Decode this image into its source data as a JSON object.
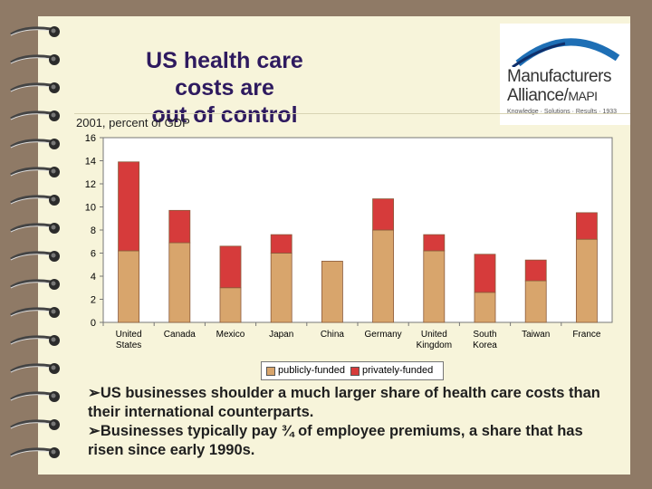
{
  "title": {
    "line1": "US health care costs are",
    "line2": "out of control"
  },
  "logo": {
    "line1": "Manufacturers",
    "line2": "Alliance/",
    "line2_suffix": "MAPI",
    "tagline": "Knowledge · Solutions · Results · 1933"
  },
  "subtitle": "2001, percent of GDP",
  "legend": {
    "items": [
      "publicly-funded",
      "privately-funded"
    ]
  },
  "colors": {
    "public": "#d8a56c",
    "private": "#d63b3b",
    "page": "#f7f4da",
    "background": "#8f7a66",
    "title": "#2e1a5f"
  },
  "bullets": [
    "➢US businesses shoulder a much larger share of health care costs than their international counterparts.",
    "➢Businesses typically pay ¾ of employee premiums, a share that has risen since early 1990s."
  ],
  "chart_data": {
    "type": "bar",
    "stacked": true,
    "categories": [
      "United States",
      "Canada",
      "Mexico",
      "Japan",
      "China",
      "Germany",
      "United Kingdom",
      "South Korea",
      "Taiwan",
      "France"
    ],
    "category_lines": [
      [
        "United",
        "States"
      ],
      [
        "Canada"
      ],
      [
        "Mexico"
      ],
      [
        "Japan"
      ],
      [
        "China"
      ],
      [
        "Germany"
      ],
      [
        "United",
        "Kingdom"
      ],
      [
        "South",
        "Korea"
      ],
      [
        "Taiwan"
      ],
      [
        "France"
      ]
    ],
    "series": [
      {
        "name": "publicly-funded",
        "values": [
          6.2,
          6.9,
          3.0,
          6.0,
          5.3,
          8.0,
          6.2,
          2.6,
          3.6,
          7.2
        ]
      },
      {
        "name": "privately-funded",
        "values": [
          7.7,
          2.8,
          3.6,
          1.6,
          0,
          2.7,
          1.4,
          3.3,
          1.8,
          2.3
        ]
      }
    ],
    "yticks": [
      0,
      2,
      4,
      6,
      8,
      10,
      12,
      14,
      16
    ],
    "ylim": [
      0,
      16
    ],
    "xlabel": "",
    "ylabel": "",
    "grid": false,
    "legend_position": "bottom"
  }
}
